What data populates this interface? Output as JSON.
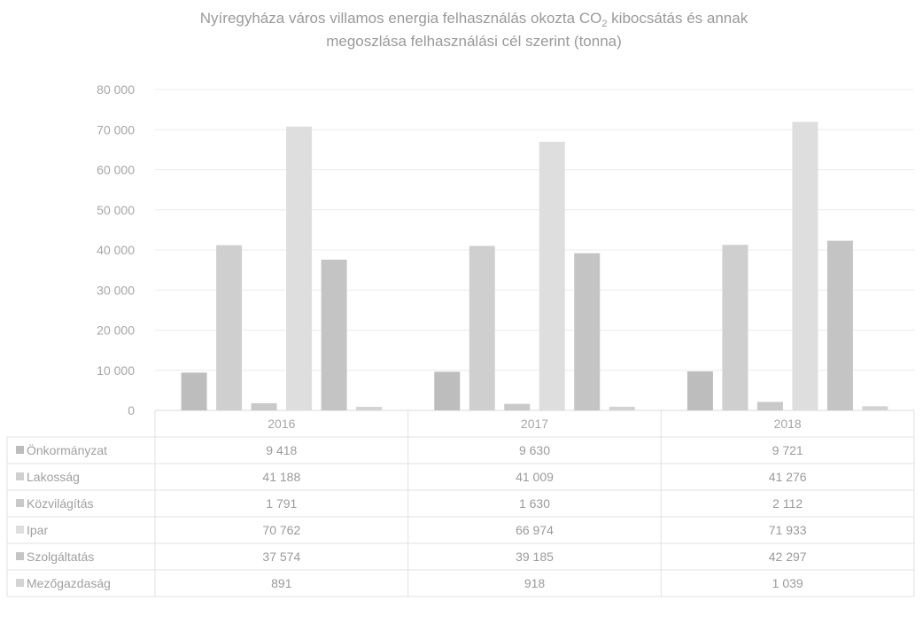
{
  "chart_data": {
    "type": "bar",
    "title_line1": "Nyíregyháza város villamos energia felhasználás okozta CO",
    "title_sub": "2",
    "title_line1_tail": " kibocsátás és annak",
    "title_line2": "megoszlása felhasználási cél szerint (tonna)",
    "xlabel": "",
    "ylabel": "",
    "ylim": [
      0,
      80000
    ],
    "y_ticks": [
      0,
      10000,
      20000,
      30000,
      40000,
      50000,
      60000,
      70000,
      80000
    ],
    "y_tick_labels": [
      "0",
      "10 000",
      "20 000",
      "30 000",
      "40 000",
      "50 000",
      "60 000",
      "70 000",
      "80 000"
    ],
    "categories": [
      "2016",
      "2017",
      "2018"
    ],
    "series": [
      {
        "name": "Önkormányzat",
        "values": [
          9418,
          9630,
          9721
        ],
        "labels": [
          "9 418",
          "9 630",
          "9 721"
        ],
        "color": "#bdbdbd"
      },
      {
        "name": "Lakosság",
        "values": [
          41188,
          41009,
          41276
        ],
        "labels": [
          "41 188",
          "41 009",
          "41 276"
        ],
        "color": "#cfcfcf"
      },
      {
        "name": "Közvilágítás",
        "values": [
          1791,
          1630,
          2112
        ],
        "labels": [
          "1 791",
          "1 630",
          "2 112"
        ],
        "color": "#c9c9c9"
      },
      {
        "name": "Ipar",
        "values": [
          70762,
          66974,
          71933
        ],
        "labels": [
          "70 762",
          "66 974",
          "71 933"
        ],
        "color": "#dedede"
      },
      {
        "name": "Szolgáltatás",
        "values": [
          37574,
          39185,
          42297
        ],
        "labels": [
          "37 574",
          "39 185",
          "42 297"
        ],
        "color": "#c4c4c4"
      },
      {
        "name": "Mezőgazdaság",
        "values": [
          891,
          918,
          1039
        ],
        "labels": [
          "891",
          "918",
          "1 039"
        ],
        "color": "#d3d3d3"
      }
    ],
    "grid": true,
    "legend": "data-table"
  }
}
